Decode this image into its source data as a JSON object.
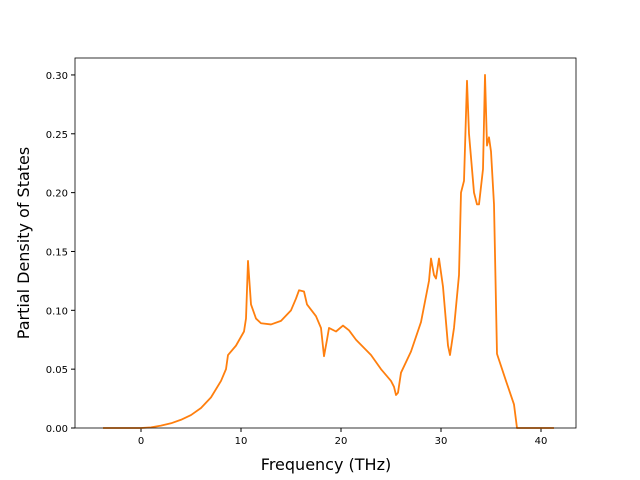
{
  "chart_data": {
    "type": "line",
    "xlabel": "Frequency (THz)",
    "ylabel": "Partial Density of States",
    "color": "#ff7f0e",
    "x": [
      -3.8,
      0,
      1,
      2,
      3,
      4,
      5,
      6,
      7,
      8,
      8.5,
      8.7,
      9.5,
      10.3,
      10.5,
      10.7,
      11,
      11.5,
      12,
      13,
      14,
      15,
      15.5,
      15.8,
      16.3,
      16.6,
      17.5,
      18,
      18.3,
      18.6,
      18.8,
      19.5,
      20.2,
      20.8,
      21.5,
      23,
      24,
      25,
      25.3,
      25.5,
      25.7,
      26,
      27,
      28,
      28.8,
      29,
      29.3,
      29.5,
      29.8,
      30.2,
      30.7,
      30.9,
      31.3,
      31.8,
      32,
      32.3,
      32.6,
      32.8,
      33.3,
      33.6,
      33.8,
      34.2,
      34.4,
      34.6,
      34.8,
      35,
      35.3,
      35.6,
      36.5,
      37.3,
      37.6,
      41.3
    ],
    "values": [
      0,
      0,
      0.0005,
      0.002,
      0.004,
      0.007,
      0.011,
      0.017,
      0.026,
      0.04,
      0.05,
      0.062,
      0.07,
      0.082,
      0.093,
      0.142,
      0.105,
      0.093,
      0.089,
      0.088,
      0.091,
      0.1,
      0.11,
      0.117,
      0.116,
      0.105,
      0.095,
      0.085,
      0.061,
      0.075,
      0.085,
      0.082,
      0.087,
      0.083,
      0.075,
      0.062,
      0.05,
      0.04,
      0.035,
      0.028,
      0.03,
      0.047,
      0.065,
      0.09,
      0.125,
      0.144,
      0.13,
      0.127,
      0.144,
      0.12,
      0.07,
      0.062,
      0.085,
      0.13,
      0.2,
      0.21,
      0.295,
      0.25,
      0.2,
      0.19,
      0.19,
      0.22,
      0.3,
      0.24,
      0.247,
      0.235,
      0.19,
      0.063,
      0.04,
      0.02,
      0,
      0
    ],
    "xlim": [
      -6.6,
      43.5
    ],
    "xticks": [
      0,
      10,
      20,
      30,
      40
    ],
    "ylim": [
      0,
      0.3144
    ],
    "yticks": [
      {
        "value": 0,
        "label": "0.00"
      },
      {
        "value": 0.05,
        "label": "0.05"
      },
      {
        "value": 0.1,
        "label": "0.10"
      },
      {
        "value": 0.15,
        "label": "0.15"
      },
      {
        "value": 0.2,
        "label": "0.20"
      },
      {
        "value": 0.25,
        "label": "0.25"
      },
      {
        "value": 0.3,
        "label": "0.30"
      }
    ]
  }
}
